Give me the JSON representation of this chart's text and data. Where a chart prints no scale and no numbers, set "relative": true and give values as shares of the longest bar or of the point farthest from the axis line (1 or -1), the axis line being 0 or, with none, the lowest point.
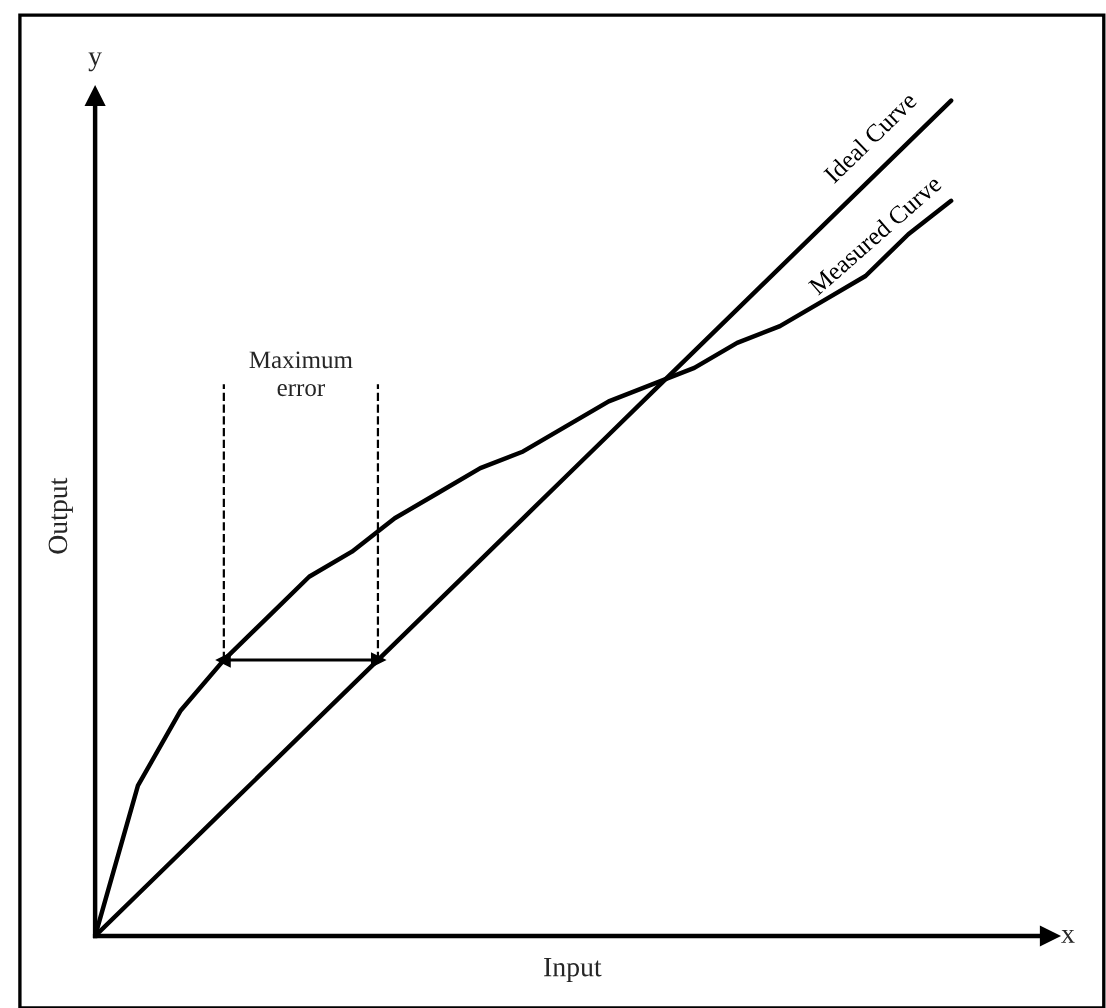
{
  "chart_data": {
    "type": "line",
    "relative": true,
    "xlabel": "Input",
    "ylabel": "Output",
    "categories": [
      null,
      null,
      null,
      null,
      null,
      null,
      null,
      null,
      null,
      null,
      null,
      null,
      null,
      null,
      null,
      null,
      null,
      null,
      null,
      null,
      null
    ],
    "series": [
      {
        "name": "Ideal Curve",
        "color": "#000000",
        "values": [
          0,
          0.05,
          0.1,
          0.15,
          0.2,
          0.25,
          0.3,
          0.35,
          0.4,
          0.45,
          0.5,
          0.55,
          0.6,
          0.65,
          0.7,
          0.75,
          0.8,
          0.85,
          0.9,
          0.95,
          1.0
        ]
      },
      {
        "name": "Measured Curve",
        "color": "#000000",
        "values": [
          0,
          0.18,
          0.27,
          0.33,
          0.38,
          0.43,
          0.46,
          0.5,
          0.53,
          0.56,
          0.58,
          0.61,
          0.64,
          0.66,
          0.68,
          0.71,
          0.73,
          0.76,
          0.79,
          0.84,
          0.88
        ]
      }
    ],
    "annotations": [
      "y",
      "x",
      "Maximum error"
    ],
    "grid": false,
    "line_style": "solid"
  }
}
